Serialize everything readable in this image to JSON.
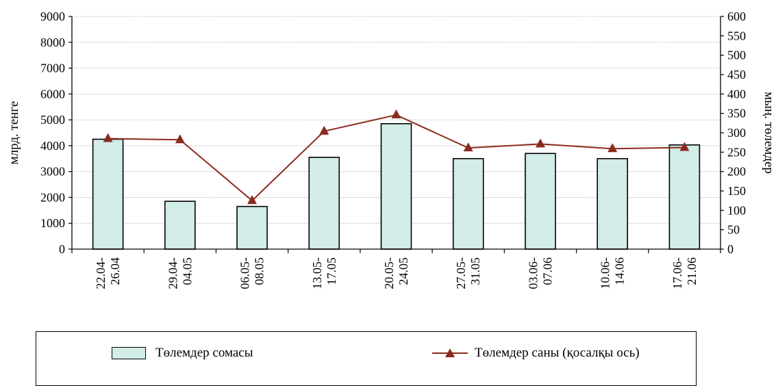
{
  "chart_data": {
    "type": "bar",
    "categories": [
      [
        "22.04-",
        "26.04"
      ],
      [
        "29.04-",
        "04.05"
      ],
      [
        "06.05-",
        "08.05"
      ],
      [
        "13.05-",
        "17.05"
      ],
      [
        "20.05-",
        "24.05"
      ],
      [
        "27.05-",
        "31.05"
      ],
      [
        "03.06-",
        "07.06"
      ],
      [
        "10.06-",
        "14.06"
      ],
      [
        "17.06-",
        "21.06"
      ]
    ],
    "series": [
      {
        "name": "Төлемдер сомасы",
        "type": "bar",
        "axis": "left",
        "values": [
          4250,
          1850,
          1650,
          3550,
          4850,
          3500,
          3700,
          3500,
          4030
        ],
        "color": "#d2ece7"
      },
      {
        "name": "Төлемдер саны (қосалқы ось)",
        "type": "line",
        "axis": "right",
        "values": [
          285,
          282,
          125,
          304,
          346,
          261,
          271,
          259,
          262
        ],
        "color": "#8b2a1e",
        "marker": "triangle"
      }
    ],
    "ylabel": "млрд. тенге",
    "y2label": "мың. төлемдер",
    "ylim": [
      0,
      9000
    ],
    "yticks": [
      0,
      1000,
      2000,
      3000,
      4000,
      5000,
      6000,
      7000,
      8000,
      9000
    ],
    "y2lim": [
      0,
      600
    ],
    "y2ticks": [
      0,
      50,
      100,
      150,
      200,
      250,
      300,
      350,
      400,
      450,
      500,
      550,
      600
    ],
    "grid": "horizontal-dotted",
    "legend_position": "bottom"
  },
  "legend": {
    "bar_label": "Төлемдер сомасы",
    "line_label": "Төлемдер саны (қосалқы ось)"
  }
}
